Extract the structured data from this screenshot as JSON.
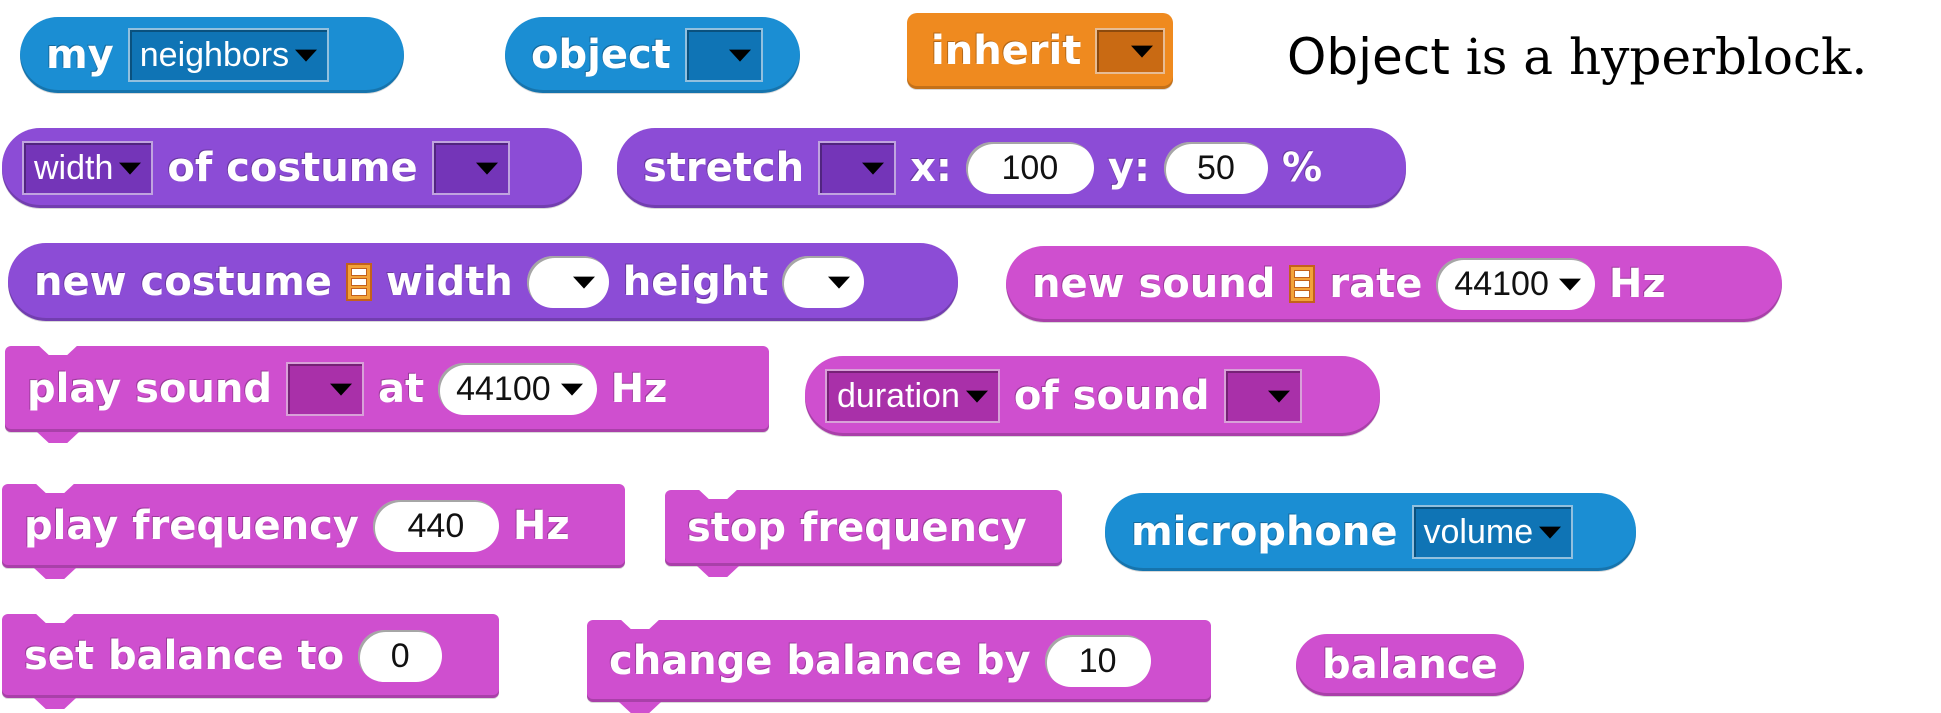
{
  "row1": {
    "my_block": {
      "label": "my",
      "dropdown": "neighbors"
    },
    "object_block": {
      "label": "object",
      "dropdown": ""
    },
    "inherit_block": {
      "label": "inherit",
      "dropdown": ""
    },
    "caption": {
      "emphasis": "Object",
      "text": " is a hyperblock."
    }
  },
  "row2": {
    "attr_of_costume": {
      "dropdown": "width",
      "label": "of costume",
      "costume_dropdown": ""
    },
    "stretch_block": {
      "label": "stretch",
      "dropdown": "",
      "x_label": "x:",
      "x_value": "100",
      "y_label": "y:",
      "y_value": "50",
      "unit": "%"
    }
  },
  "row3": {
    "new_costume": {
      "label": "new costume",
      "width_label": "width",
      "height_label": "height"
    },
    "new_sound": {
      "label": "new sound",
      "rate_label": "rate",
      "rate_value": "44100",
      "unit": "Hz"
    }
  },
  "row4": {
    "play_sound_at": {
      "label": "play sound",
      "at_label": "at",
      "rate_value": "44100",
      "unit": "Hz"
    },
    "attr_of_sound": {
      "dropdown": "duration",
      "label": "of sound"
    }
  },
  "row5": {
    "play_frequency": {
      "label": "play frequency",
      "value": "440",
      "unit": "Hz"
    },
    "stop_frequency": {
      "label": "stop frequency"
    },
    "microphone": {
      "label": "microphone",
      "dropdown": "volume"
    }
  },
  "row6": {
    "set_balance": {
      "label": "set balance to",
      "value": "0"
    },
    "change_balance": {
      "label": "change balance by",
      "value": "10"
    },
    "balance_reporter": {
      "label": "balance"
    }
  },
  "colors": {
    "sensing_blue": "#1b8ed3",
    "control_orange": "#ef8a1f",
    "looks_purple": "#8c4cd6",
    "sound_pink": "#cf4fcf"
  },
  "icons": {
    "list": "list-icon",
    "dropdown": "chevron-down-icon"
  }
}
